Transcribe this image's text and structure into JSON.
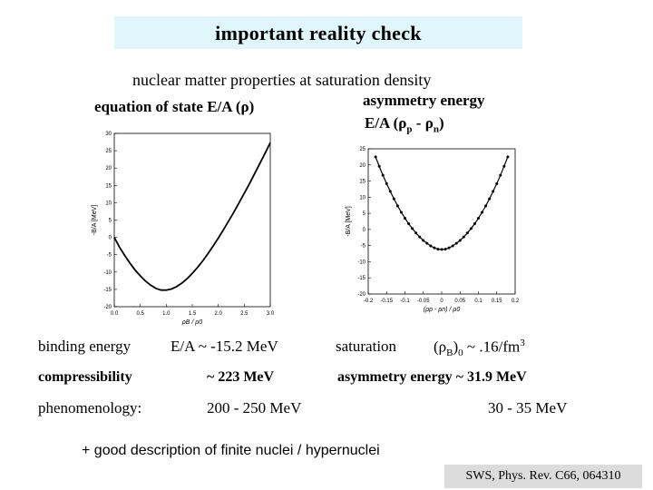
{
  "slide": {
    "title": "important reality check",
    "subtitle": "nuclear matter properties at saturation density",
    "eos_label": "equation of state  E/A (ρ)",
    "asym_title": "asymmetry energy",
    "asym_formula": "E/A (ρp - ρn)"
  },
  "properties": {
    "binding_label": "binding  energy",
    "binding_value": "E/A  ~  -15.2 MeV",
    "saturation_label": "saturation",
    "saturation_value": "(ρB)0 ~ .16/fm3",
    "compress_label": "compressibility",
    "compress_value": "~ 223 MeV",
    "asym_label": "asymmetry energy  ~ 31.9 MeV",
    "phen_label": "phenomenology:",
    "phen_value": "200 - 250 MeV",
    "phen_asym_value": "30 - 35 MeV"
  },
  "footer": "+ good description of finite nuclei / hypernuclei",
  "reference": "SWS, Phys. Rev. C66, 064310",
  "chart_data": [
    {
      "type": "line",
      "xlabel": "ρB / ρ0",
      "ylabel": "-B/A [MeV]",
      "xlim": [
        0,
        3
      ],
      "ylim": [
        -20,
        30
      ],
      "xticks": [
        "0.0",
        "0.5",
        "1.0",
        "1.5",
        "2.0",
        "2.5",
        "3.0"
      ],
      "yticks": [
        "-20",
        "-15",
        "-10",
        "-5",
        "0",
        "5",
        "10",
        "15",
        "20",
        "25",
        "30"
      ],
      "x": [
        0.0,
        0.1,
        0.2,
        0.3,
        0.4,
        0.5,
        0.6,
        0.7,
        0.8,
        0.9,
        1.0,
        1.1,
        1.2,
        1.3,
        1.4,
        1.5,
        1.6,
        1.7,
        1.8,
        1.9,
        2.0,
        2.1,
        2.2,
        2.3,
        2.4,
        2.5,
        2.6,
        2.7,
        2.8,
        2.9,
        3.0
      ],
      "y": [
        0.0,
        -2.8,
        -5.2,
        -7.4,
        -9.4,
        -11.1,
        -12.6,
        -13.8,
        -14.7,
        -15.2,
        -15.2,
        -14.9,
        -14.2,
        -13.2,
        -11.9,
        -10.4,
        -8.7,
        -6.8,
        -4.7,
        -2.5,
        -0.2,
        2.2,
        4.7,
        7.3,
        10.0,
        12.7,
        15.5,
        18.4,
        21.3,
        24.3,
        27.3
      ]
    },
    {
      "type": "scatter",
      "xlabel": "(ρp - ρn) / ρ0",
      "ylabel": "-B/A [MeV]",
      "xlim": [
        -0.2,
        0.2
      ],
      "ylim": [
        -20,
        25
      ],
      "xticks": [
        "-0.2",
        "-0.15",
        "-0.1",
        "-0.05",
        "0",
        "0.05",
        "0.1",
        "0.15",
        "0.2"
      ],
      "yticks": [
        "-20",
        "-15",
        "-10",
        "-5",
        "0",
        "5",
        "10",
        "15",
        "20",
        "25"
      ],
      "x": [
        -0.18,
        -0.17,
        -0.16,
        -0.15,
        -0.14,
        -0.13,
        -0.12,
        -0.11,
        -0.1,
        -0.09,
        -0.08,
        -0.07,
        -0.06,
        -0.05,
        -0.04,
        -0.03,
        -0.02,
        -0.01,
        0.0,
        0.01,
        0.02,
        0.03,
        0.04,
        0.05,
        0.06,
        0.07,
        0.08,
        0.09,
        0.1,
        0.11,
        0.12,
        0.13,
        0.14,
        0.15,
        0.16,
        0.17,
        0.18
      ],
      "y": [
        22.5,
        19.6,
        16.8,
        14.2,
        11.8,
        9.5,
        7.3,
        5.3,
        3.5,
        1.8,
        0.3,
        -1.1,
        -2.3,
        -3.4,
        -4.3,
        -5.1,
        -5.7,
        -6.1,
        -6.2,
        -6.1,
        -5.7,
        -5.1,
        -4.3,
        -3.4,
        -2.3,
        -1.1,
        0.3,
        1.8,
        3.5,
        5.3,
        7.3,
        9.5,
        11.8,
        14.2,
        16.8,
        19.6,
        22.5
      ]
    }
  ]
}
